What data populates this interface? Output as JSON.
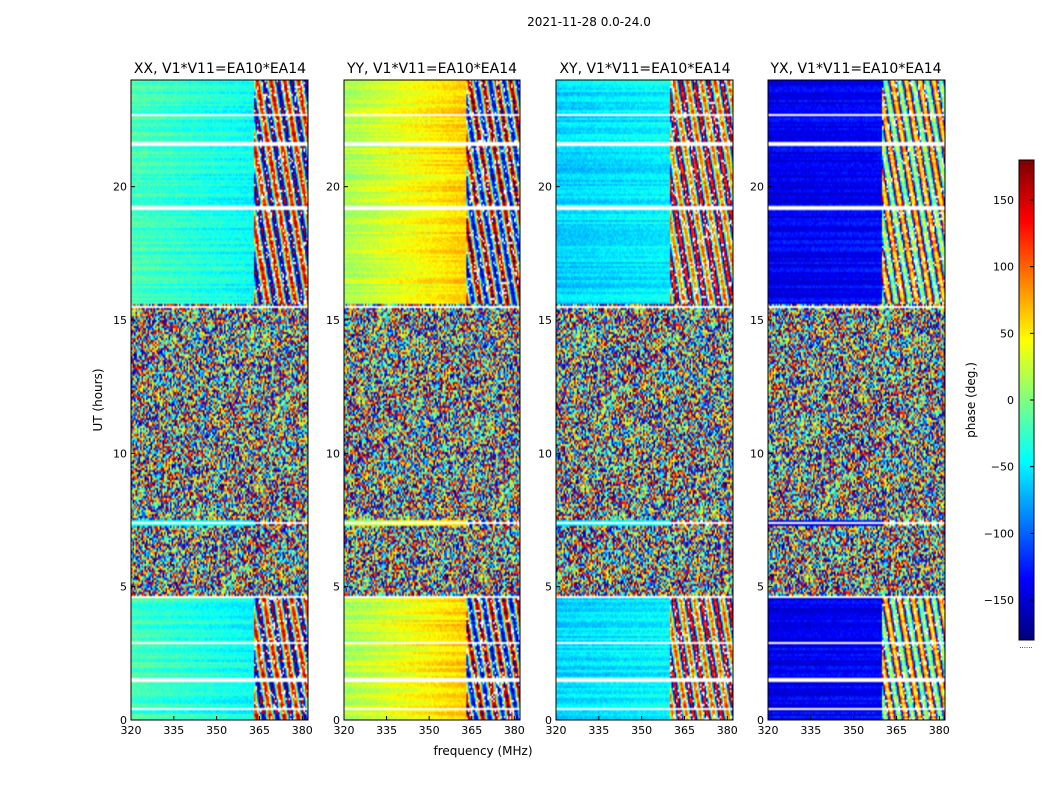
{
  "suptitle": "2021-11-28 0.0-24.0",
  "chart_data": {
    "type": "heatmap",
    "title": "2021-11-28 0.0-24.0",
    "xlabel": "frequency (MHz)",
    "ylabel": "UT (hours)",
    "xlim": [
      320,
      382
    ],
    "ylim": [
      0,
      24
    ],
    "xticks": [
      320,
      335,
      350,
      365,
      380
    ],
    "xtick_labels": [
      "320",
      "335",
      "350",
      "365",
      "380"
    ],
    "yticks": [
      0,
      5,
      10,
      15,
      20
    ],
    "ytick_labels": [
      "0",
      "5",
      "10",
      "15",
      "20"
    ],
    "colorbar": {
      "label": "phase (deg.)",
      "range": [
        -180,
        180
      ],
      "ticks": [
        150,
        100,
        50,
        0,
        -50,
        -100,
        -150
      ],
      "tick_labels": [
        "150",
        "100",
        "50",
        "0",
        "−50",
        "−100",
        "−150"
      ],
      "colormap": "jet",
      "footer": "......"
    },
    "panels": [
      {
        "title": "XX, V1*V11=EA10*EA14",
        "base_phase": -20,
        "drift": -35,
        "vib_start_freq": 363
      },
      {
        "title": "YY, V1*V11=EA10*EA14",
        "base_phase": 15,
        "drift": 70,
        "vib_start_freq": 363
      },
      {
        "title": "XY, V1*V11=EA10*EA14",
        "base_phase": -60,
        "drift": 20,
        "vib_start_freq": 360
      },
      {
        "title": "YX, V1*V11=EA10*EA14",
        "base_phase": -140,
        "drift": 10,
        "vib_start_freq": 360
      }
    ],
    "noise_time_ranges": [
      [
        4.6,
        7.3
      ],
      [
        7.5,
        15.6
      ]
    ],
    "gap_times": [
      0.4,
      1.5,
      2.9,
      4.6,
      7.4,
      15.5,
      19.2,
      21.6,
      22.7
    ]
  }
}
